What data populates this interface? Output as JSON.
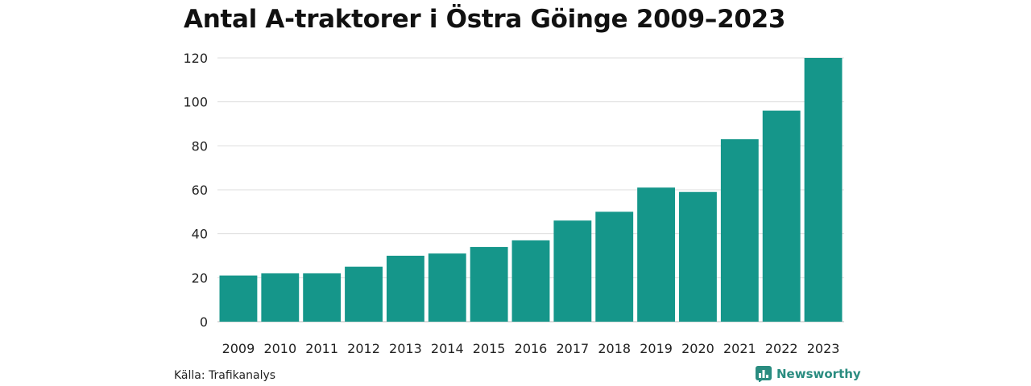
{
  "chart_data": {
    "type": "bar",
    "title": "Antal A-traktorer i Östra Göinge 2009–2023",
    "categories": [
      "2009",
      "2010",
      "2011",
      "2012",
      "2013",
      "2014",
      "2015",
      "2016",
      "2017",
      "2018",
      "2019",
      "2020",
      "2021",
      "2022",
      "2023"
    ],
    "values": [
      21,
      22,
      22,
      25,
      30,
      31,
      34,
      37,
      46,
      50,
      61,
      59,
      83,
      96,
      120
    ],
    "xlabel": "",
    "ylabel": "",
    "ylim": [
      0,
      120
    ],
    "yticks": [
      0,
      20,
      40,
      60,
      80,
      100,
      120
    ],
    "grid": true,
    "bar_color": "#15968a"
  },
  "source": "Källa: Trafikanalys",
  "brand": {
    "name": "Newsworthy",
    "icon": "newsworthy-logo-icon",
    "color": "#2a8c80"
  }
}
